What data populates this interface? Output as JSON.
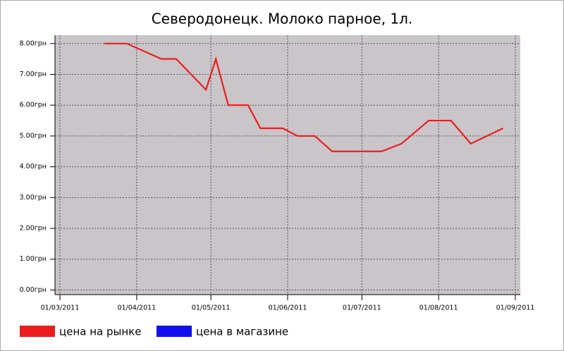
{
  "chart_data": {
    "type": "line",
    "title": "Северодонецк. Молоко парное, 1л.",
    "x": [
      "2011-03-19",
      "2011-03-28",
      "2011-04-11",
      "2011-04-17",
      "2011-04-29",
      "2011-05-03",
      "2011-05-08",
      "2011-05-16",
      "2011-05-21",
      "2011-05-30",
      "2011-06-05",
      "2011-06-12",
      "2011-06-19",
      "2011-07-09",
      "2011-07-17",
      "2011-07-28",
      "2011-08-06",
      "2011-08-14",
      "2011-08-27"
    ],
    "series": [
      {
        "name": "цена на рынке",
        "color": "#ee1c1c",
        "values": [
          8.0,
          8.0,
          7.5,
          7.5,
          6.5,
          7.5,
          6.0,
          6.0,
          5.25,
          5.25,
          5.0,
          5.0,
          4.5,
          4.5,
          4.75,
          5.5,
          5.5,
          4.75,
          5.25
        ]
      },
      {
        "name": "цена в магазине",
        "color": "#1010ee",
        "values": [
          null,
          null,
          null,
          null,
          null,
          null,
          null,
          null,
          null,
          null,
          null,
          null,
          null,
          null,
          null,
          null,
          null,
          null,
          null
        ]
      }
    ],
    "xlim": [
      "2011-02-27",
      "2011-09-03"
    ],
    "xticks": [
      {
        "value": "2011-03-01",
        "label": "01/03/2011"
      },
      {
        "value": "2011-04-01",
        "label": "01/04/2011"
      },
      {
        "value": "2011-05-01",
        "label": "01/05/2011"
      },
      {
        "value": "2011-06-01",
        "label": "01/06/2011"
      },
      {
        "value": "2011-07-01",
        "label": "01/07/2011"
      },
      {
        "value": "2011-08-01",
        "label": "01/08/2011"
      },
      {
        "value": "2011-09-01",
        "label": "01/09/2011"
      }
    ],
    "ylim": [
      -0.15,
      8.27
    ],
    "yticks": [
      {
        "value": 0,
        "label": "0.00грн"
      },
      {
        "value": 1,
        "label": "1.00грн"
      },
      {
        "value": 2,
        "label": "2.00грн"
      },
      {
        "value": 3,
        "label": "3.00грн"
      },
      {
        "value": 4,
        "label": "4.00грн"
      },
      {
        "value": 5,
        "label": "5.00грн"
      },
      {
        "value": 6,
        "label": "6.00грн"
      },
      {
        "value": 7,
        "label": "7.00грн"
      },
      {
        "value": 8,
        "label": "8.00грн"
      }
    ],
    "grid": true
  }
}
